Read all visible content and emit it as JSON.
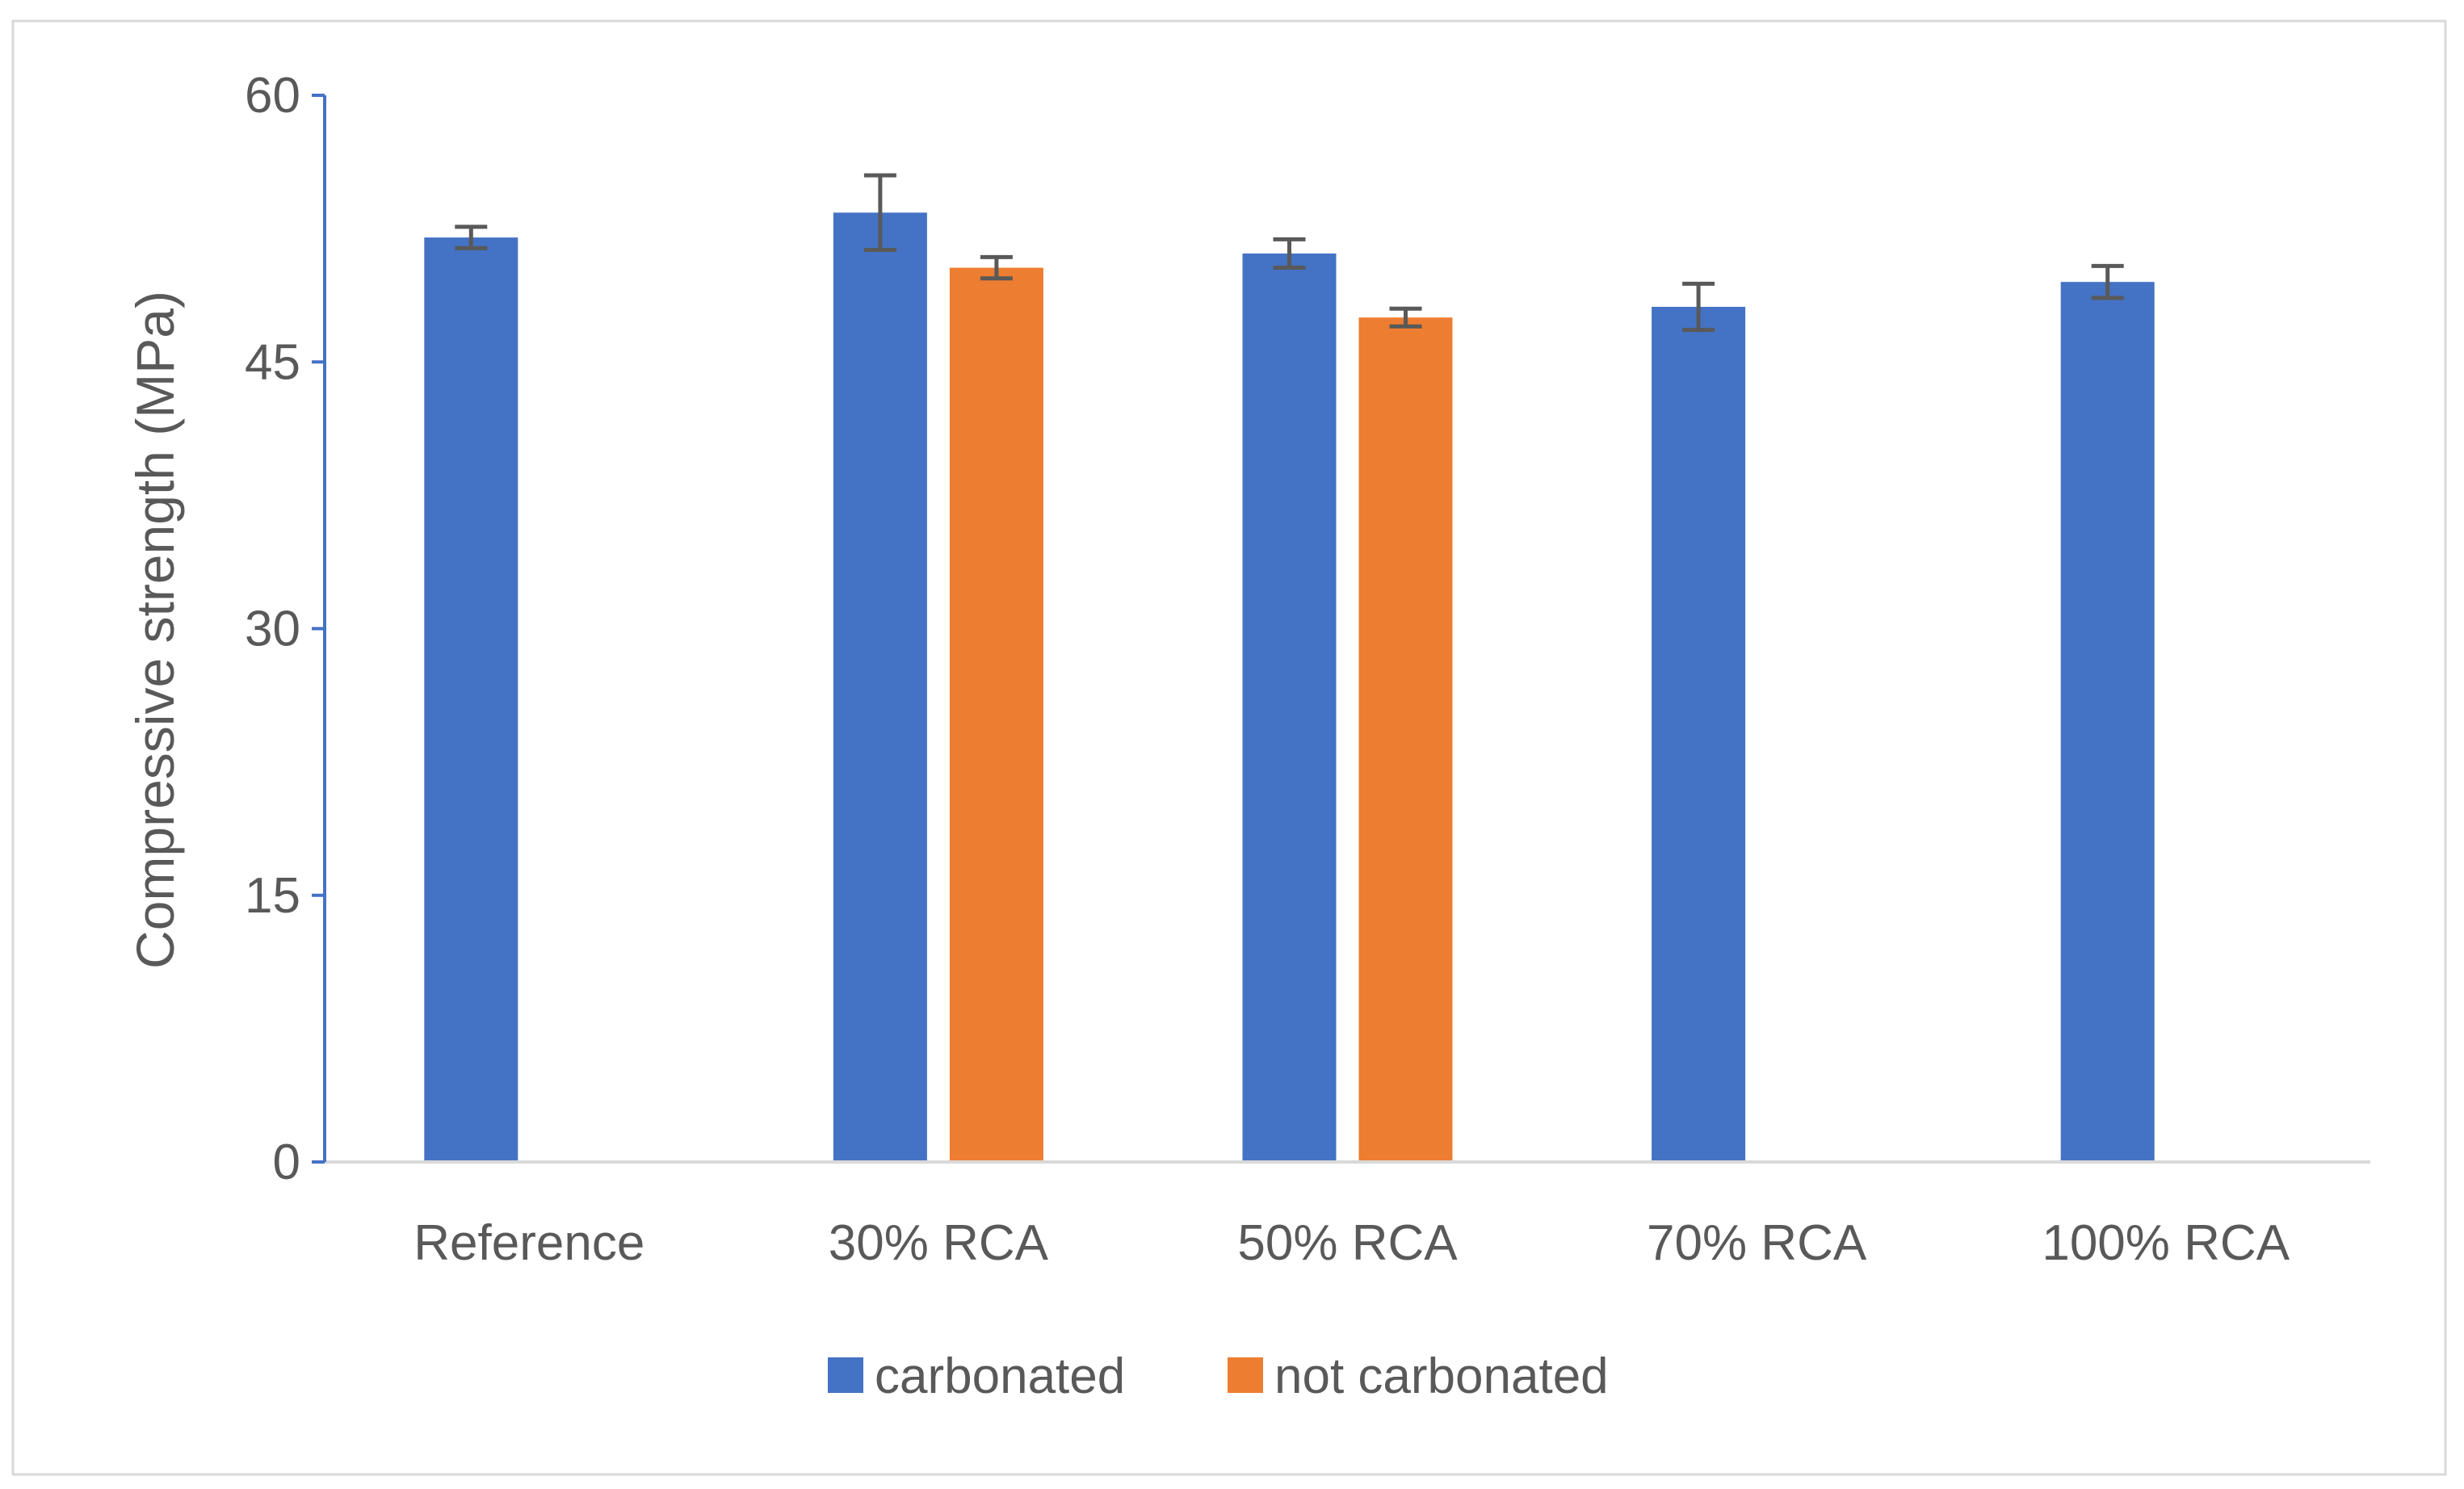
{
  "chart_data": {
    "type": "bar",
    "title": "",
    "xlabel": "",
    "ylabel": "Compressive strength (MPa)",
    "ylim": [
      0,
      60
    ],
    "yticks": [
      0,
      15,
      30,
      45,
      60
    ],
    "grid": false,
    "legend_position": "bottom",
    "categories": [
      "Reference",
      "30% RCA",
      "50% RCA",
      "70% RCA",
      "100% RCA"
    ],
    "series": [
      {
        "name": "carbonated",
        "color": "#4472C4",
        "values": [
          52.0,
          53.4,
          51.1,
          48.1,
          49.5
        ],
        "errors": [
          0.6,
          2.1,
          0.8,
          1.3,
          0.9
        ]
      },
      {
        "name": "not carbonated",
        "color": "#ED7D31",
        "values": [
          null,
          50.3,
          47.5,
          null,
          null
        ],
        "errors": [
          null,
          0.6,
          0.5,
          null,
          null
        ]
      }
    ]
  },
  "colors": {
    "axis": "#4472C4",
    "baseline": "#D9D9D9",
    "error_bar": "#595959",
    "frame": "#D9D9D9",
    "text": "#595959"
  }
}
